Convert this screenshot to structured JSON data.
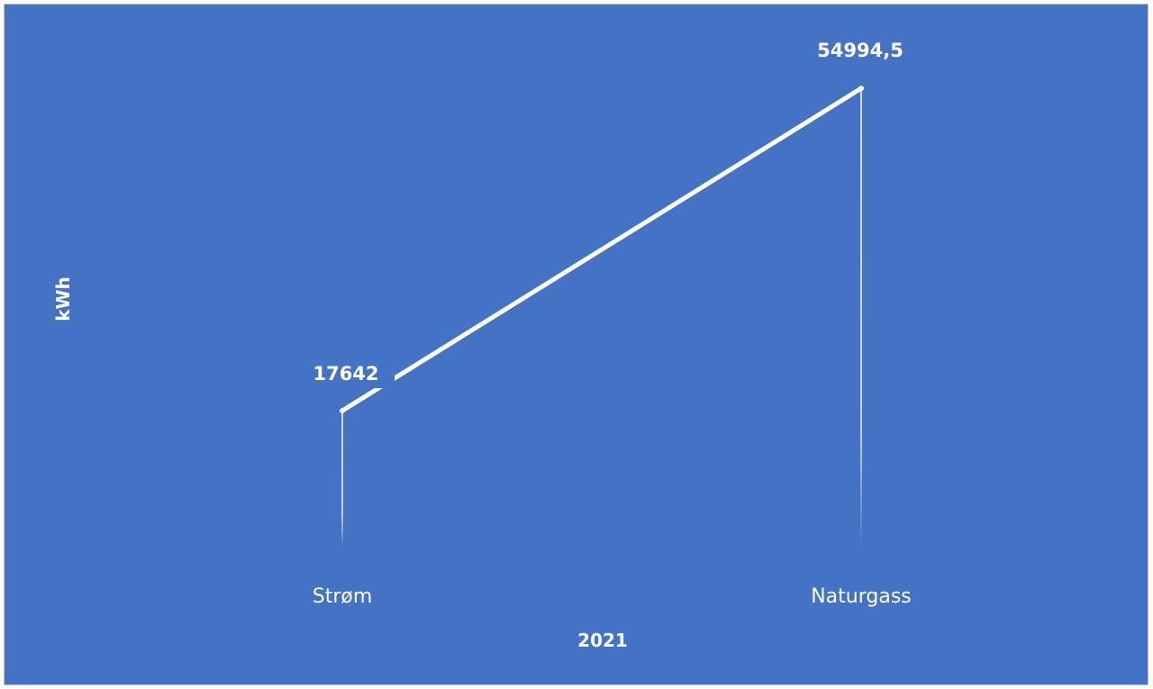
{
  "chart_data": {
    "type": "line",
    "categories": [
      "Strøm",
      "Naturgass"
    ],
    "series": [
      {
        "values": [
          17642,
          54994.5
        ]
      }
    ],
    "data_labels": [
      "17642",
      "54994,5"
    ],
    "title": "",
    "xlabel": "2021",
    "ylabel": "kWh",
    "grid": false,
    "drop_lines": true,
    "colors": {
      "background": "#4472c4",
      "line": "#ffffff",
      "text": "#ffffff"
    }
  }
}
